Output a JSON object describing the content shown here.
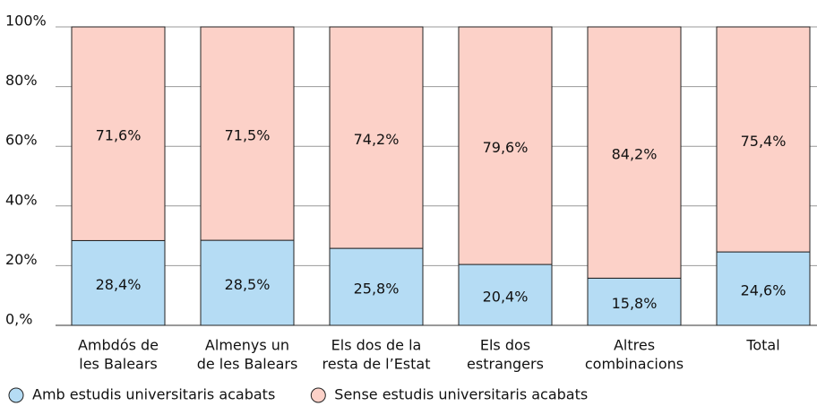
{
  "chart_data": {
    "type": "stacked_bar",
    "categories": [
      [
        "Ambdós de",
        "les Balears"
      ],
      [
        "Almenys un",
        "de les Balears"
      ],
      [
        "Els dos de la",
        "resta de l’Estat"
      ],
      [
        "Els dos",
        "estrangers"
      ],
      [
        "Altres",
        "combinacions"
      ],
      [
        "Total"
      ]
    ],
    "series": [
      {
        "name": "Amb estudis universitaris acabats",
        "color": "#b5dcf4",
        "values": [
          28.4,
          28.5,
          25.8,
          20.4,
          15.8,
          24.6
        ],
        "value_labels": [
          "28,4%",
          "28,5%",
          "25,8%",
          "20,4%",
          "15,8%",
          "24,6%"
        ]
      },
      {
        "name": "Sense estudis universitaris acabats",
        "color": "#fcd1c8",
        "values": [
          71.6,
          71.5,
          74.2,
          79.6,
          84.2,
          75.4
        ],
        "value_labels": [
          "71,6%",
          "71,5%",
          "74,2%",
          "79,6%",
          "84,2%",
          "75,4%"
        ]
      }
    ],
    "ylim": [
      0,
      100
    ],
    "yticks": [
      {
        "value": 0,
        "label": "0,%"
      },
      {
        "value": 20,
        "label": "20%"
      },
      {
        "value": 40,
        "label": "40%"
      },
      {
        "value": 60,
        "label": "60%"
      },
      {
        "value": 80,
        "label": "80%"
      },
      {
        "value": 100,
        "label": "100%"
      }
    ],
    "grid": true,
    "legend": "bottom-left"
  }
}
